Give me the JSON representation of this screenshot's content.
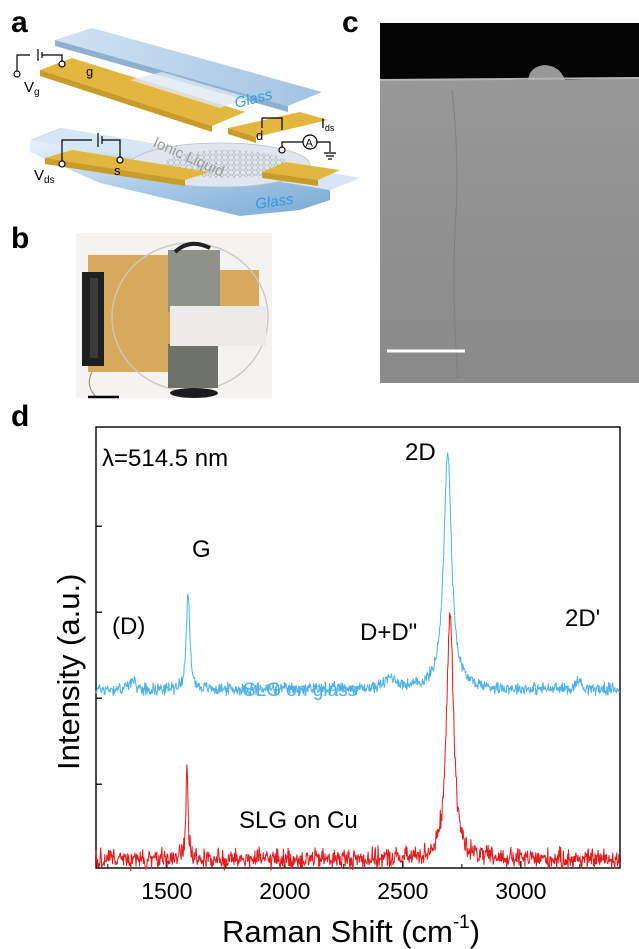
{
  "panels": {
    "a": "a",
    "b": "b",
    "c": "c",
    "d": "d"
  },
  "schematic": {
    "vg": "V",
    "vg_sub": "g",
    "g": "g",
    "glass_top": "Glass",
    "d": "d",
    "ammeter": "A",
    "ids": "I",
    "ids_sub": "ds",
    "ionic": "Ionic Liquid",
    "vds": "V",
    "vds_sub": "ds",
    "s": "s",
    "glass_bottom": "Glass"
  },
  "colors": {
    "glass_series": "#4db2ec",
    "cu_series": "#e41a1c",
    "electrode": "#e8c04a",
    "glass": "#a9cbe8",
    "sem_bg": "#8e8e8e",
    "sem_top": "#050505"
  },
  "chart_data": {
    "type": "line",
    "annotation": "λ=514.5 nm",
    "xlabel_main": "Raman Shift (cm",
    "xlabel_sup": "-1",
    "xlabel_end": ")",
    "ylabel": "Intensity (a.u.)",
    "xlim": [
      1200,
      3420
    ],
    "ylim": [
      0,
      1
    ],
    "x_ticks": [
      1500,
      2000,
      2500,
      3000
    ],
    "x_tick_labels": [
      "1500",
      "2000",
      "2500",
      "3000"
    ],
    "y_ticks": [
      0.19,
      0.385,
      0.58,
      0.775
    ],
    "y_tick_labels_shown": false,
    "series": [
      {
        "name": "SLG on glass",
        "color": "#4db2ec",
        "baseline": 0.405,
        "noise": 0.012,
        "peaks": [
          {
            "label": "(D)",
            "center": 1350,
            "height": 0.02,
            "width": 15
          },
          {
            "label": "G",
            "center": 1590,
            "height": 0.215,
            "width": 9
          },
          {
            "label": "D+D\"",
            "center": 2450,
            "height": 0.025,
            "width": 30
          },
          {
            "label": "2D",
            "center": 2690,
            "height": 0.535,
            "width": 20
          },
          {
            "label": "2D'",
            "center": 3245,
            "height": 0.02,
            "width": 15
          }
        ]
      },
      {
        "name": "SLG on Cu",
        "color": "#e41a1c",
        "baseline": 0.02,
        "noise": 0.02,
        "peaks": [
          {
            "label": "G",
            "center": 1585,
            "height": 0.215,
            "width": 5
          },
          {
            "label": "2D",
            "center": 2700,
            "height": 0.57,
            "width": 17
          }
        ]
      }
    ],
    "peak_labels": [
      "(D)",
      "G",
      "D+D\"",
      "2D",
      "2D'"
    ]
  }
}
